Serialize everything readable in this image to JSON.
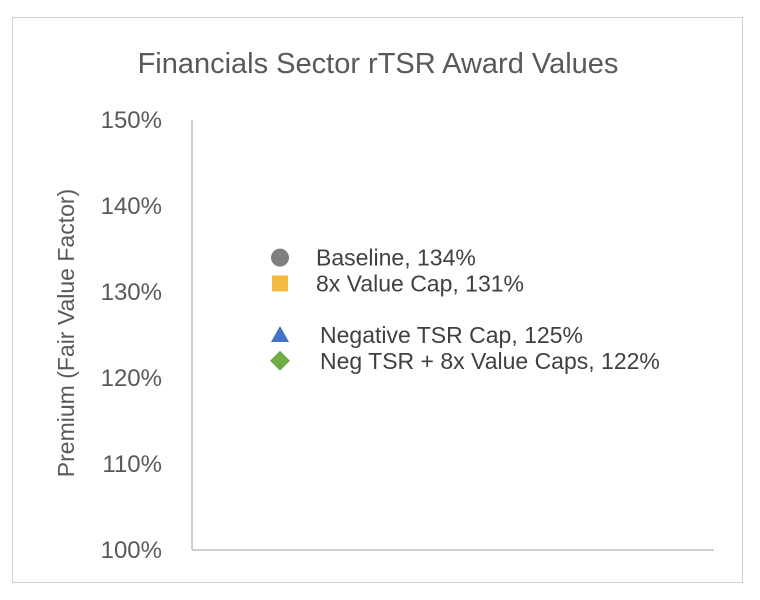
{
  "chart_data": {
    "type": "scatter",
    "title": "Financials Sector rTSR Award Values",
    "xlabel": "",
    "ylabel": "Premium (Fair Value Factor)",
    "ylim": [
      1.0,
      1.5
    ],
    "y_ticks": [
      "100%",
      "110%",
      "120%",
      "130%",
      "140%",
      "150%"
    ],
    "grid": false,
    "legend": "none",
    "series": [
      {
        "name": "Baseline",
        "y": 1.34,
        "label": "Baseline, 134%",
        "marker": "circle",
        "color": "#7f7f7f"
      },
      {
        "name": "8x Value Cap",
        "y": 1.31,
        "label": "8x Value Cap, 131%",
        "marker": "square",
        "color": "#f4b942"
      },
      {
        "name": "Negative TSR Cap",
        "y": 1.25,
        "label": "Negative TSR Cap, 125%",
        "marker": "triangle",
        "color": "#4472c4"
      },
      {
        "name": "Neg TSR + 8x Value Caps",
        "y": 1.22,
        "label": "Neg TSR + 8x Value Caps, 122%",
        "marker": "diamond",
        "color": "#70ad47"
      }
    ],
    "axis_color": "#bfbfbf"
  }
}
